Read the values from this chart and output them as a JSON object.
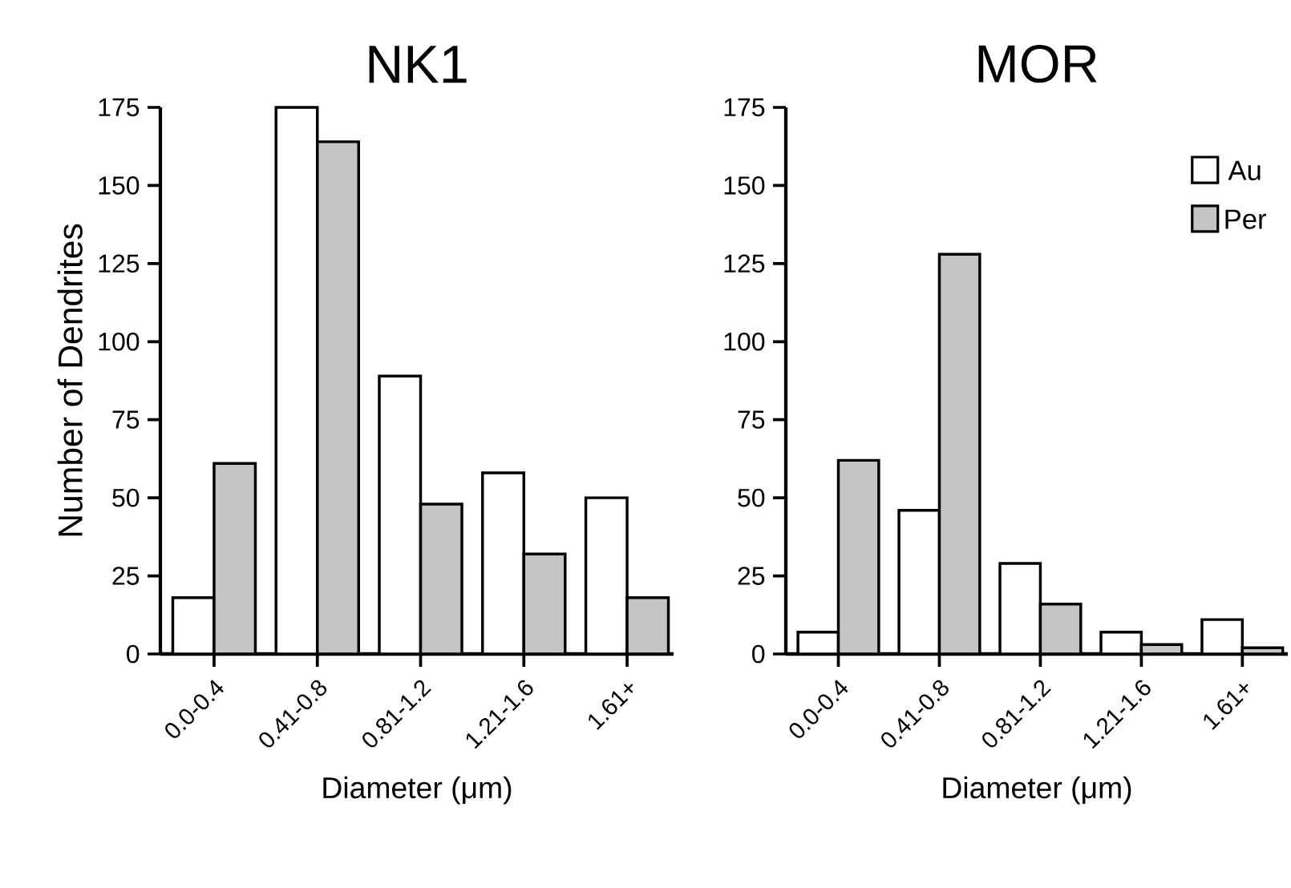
{
  "chart_data": [
    {
      "type": "bar",
      "title": "NK1",
      "xlabel": "Diameter (μm)",
      "ylabel": "Number of Dendrites",
      "categories": [
        "0.0-0.4",
        "0.41-0.8",
        "0.81-1.2",
        "1.21-1.6",
        "1.61+"
      ],
      "ylim": [
        0,
        175
      ],
      "yticks": [
        0,
        25,
        50,
        75,
        100,
        125,
        150,
        175
      ],
      "legend": false,
      "series": [
        {
          "color": "#ffffff",
          "values": [
            18,
            175,
            89,
            58,
            50
          ]
        },
        {
          "color": "#c4c4c4",
          "values": [
            61,
            164,
            48,
            32,
            18
          ]
        }
      ]
    },
    {
      "type": "bar",
      "title": "MOR",
      "xlabel": "Diameter (μm)",
      "categories": [
        "0.0-0.4",
        "0.41-0.8",
        "0.81-1.2",
        "1.21-1.6",
        "1.61+"
      ],
      "ylim": [
        0,
        175
      ],
      "yticks": [
        0,
        25,
        50,
        75,
        100,
        125,
        150,
        175
      ],
      "legend": "top right",
      "series": [
        {
          "name": "Au",
          "color": "#ffffff",
          "values": [
            7,
            46,
            29,
            7,
            11
          ]
        },
        {
          "name": "Per",
          "color": "#c4c4c4",
          "values": [
            62,
            128,
            16,
            3,
            2
          ]
        }
      ]
    }
  ]
}
